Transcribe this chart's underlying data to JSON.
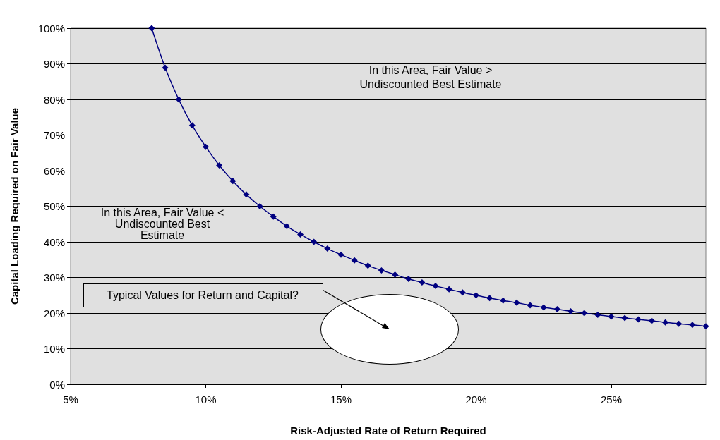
{
  "chart_data": {
    "type": "line",
    "xlabel": "Risk-Adjusted Rate of Return Required",
    "ylabel": "Capital Loading Required on Fair Value",
    "annotations": [
      "In this Area, Fair Value > Undiscounted Best Estimate",
      "In this Area, Fair Value < Undiscounted Best Estimate",
      "Typical Values for Return and Capital?"
    ],
    "x": [
      8,
      8.5,
      9,
      9.5,
      10,
      10.5,
      11,
      11.5,
      12,
      12.5,
      13,
      13.5,
      14,
      14.5,
      15,
      15.5,
      16,
      16.5,
      17,
      17.5,
      18,
      18.5,
      19,
      19.5,
      20,
      20.5,
      21,
      21.5,
      22,
      22.5,
      23,
      23.5,
      24,
      24.5,
      25,
      25.5,
      26,
      26.5,
      27,
      27.5,
      28,
      28.5
    ],
    "series": [
      {
        "color": "#000080",
        "values": [
          100,
          88.9,
          80,
          72.7,
          66.7,
          61.5,
          57.1,
          53.3,
          50,
          47.1,
          44.4,
          42.1,
          40,
          38.1,
          36.4,
          34.8,
          33.3,
          32,
          30.8,
          29.6,
          28.6,
          27.6,
          26.7,
          25.8,
          25,
          24.2,
          23.5,
          22.9,
          22.2,
          21.6,
          21.1,
          20.5,
          20,
          19.5,
          19,
          18.6,
          18.2,
          17.8,
          17.4,
          17,
          16.7,
          16.3
        ]
      }
    ],
    "xlim": [
      5,
      28.5
    ],
    "xticks": [
      {
        "value": 5,
        "label": "5%"
      },
      {
        "value": 10,
        "label": "10%"
      },
      {
        "value": 15,
        "label": "15%"
      },
      {
        "value": 20,
        "label": "20%"
      },
      {
        "value": 25,
        "label": "25%"
      }
    ],
    "ylim": [
      0,
      100
    ],
    "yticks": [
      {
        "value": 0,
        "label": "0%"
      },
      {
        "value": 10,
        "label": "10%"
      },
      {
        "value": 20,
        "label": "20%"
      },
      {
        "value": 30,
        "label": "30%"
      },
      {
        "value": 40,
        "label": "40%"
      },
      {
        "value": 50,
        "label": "50%"
      },
      {
        "value": 60,
        "label": "60%"
      },
      {
        "value": 70,
        "label": "70%"
      },
      {
        "value": 80,
        "label": "80%"
      },
      {
        "value": 90,
        "label": "90%"
      },
      {
        "value": 100,
        "label": "100%"
      }
    ],
    "grid": "y",
    "marker": "diamond",
    "line_style": "solid"
  }
}
